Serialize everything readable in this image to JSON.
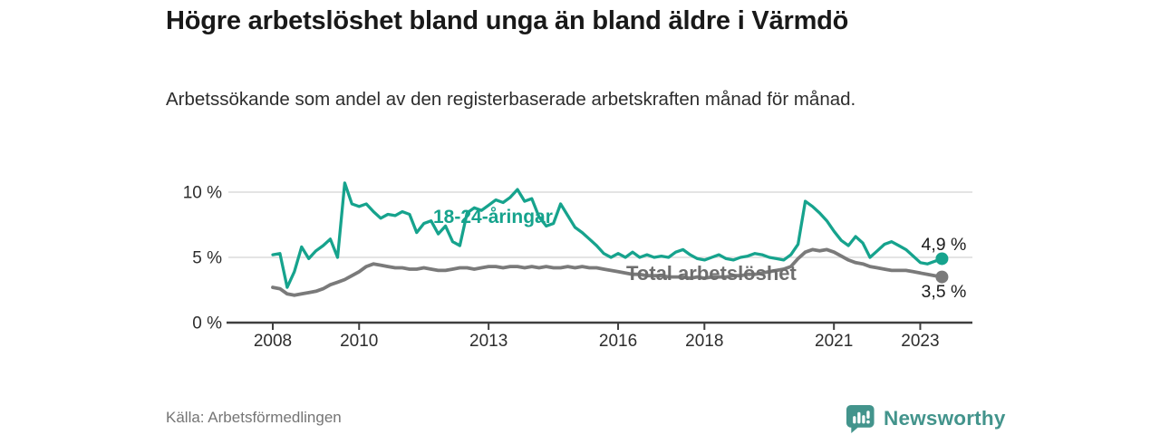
{
  "chart_data": {
    "type": "line",
    "title": "Högre arbetslöshet bland unga än bland äldre i Värmdö",
    "subtitle": "Arbetssökande som andel av den registerbaserade arbetskraften månad för månad.",
    "source": "Källa: Arbetsförmedlingen",
    "legend": "inline-labels-on-lines",
    "grid": "horizontal-only",
    "x_range_years": [
      2008,
      2023.5
    ],
    "x_axis": {
      "ticks": [
        {
          "year": 2008,
          "label": "2008"
        },
        {
          "year": 2010,
          "label": "2010"
        },
        {
          "year": 2013,
          "label": "2013"
        },
        {
          "year": 2016,
          "label": "2016"
        },
        {
          "year": 2018,
          "label": "2018"
        },
        {
          "year": 2021,
          "label": "2021"
        },
        {
          "year": 2023,
          "label": "2023"
        }
      ]
    },
    "y_axis": {
      "range": [
        0,
        11
      ],
      "unit": "%",
      "ticks": [
        {
          "value": 0,
          "label": "0 %"
        },
        {
          "value": 5,
          "label": "5 %"
        },
        {
          "value": 10,
          "label": "10 %"
        }
      ]
    },
    "series": [
      {
        "id": "total",
        "name": "Total arbetslöshet",
        "color": "#7a7a7a",
        "label_color": "#6e6e6e",
        "line_width": 3.8,
        "end_label": "3,5 %",
        "end_value": 3.5,
        "end_label_position": "below",
        "x_start_year": 2008,
        "x_step_years": 0.1667,
        "values": [
          2.7,
          2.6,
          2.2,
          2.1,
          2.2,
          2.3,
          2.4,
          2.6,
          2.9,
          3.1,
          3.3,
          3.6,
          3.9,
          4.3,
          4.5,
          4.4,
          4.3,
          4.2,
          4.2,
          4.1,
          4.1,
          4.2,
          4.1,
          4.0,
          4.0,
          4.1,
          4.2,
          4.2,
          4.1,
          4.2,
          4.3,
          4.3,
          4.2,
          4.3,
          4.3,
          4.2,
          4.3,
          4.2,
          4.3,
          4.2,
          4.2,
          4.3,
          4.2,
          4.3,
          4.2,
          4.2,
          4.1,
          4.0,
          3.9,
          3.8,
          3.7,
          3.7,
          3.6,
          3.6,
          3.6,
          3.5,
          3.5,
          3.5,
          3.4,
          3.5,
          3.4,
          3.5,
          3.5,
          3.5,
          3.6,
          3.6,
          3.7,
          3.7,
          3.8,
          3.9,
          4.0,
          4.1,
          4.3,
          4.9,
          5.4,
          5.6,
          5.5,
          5.6,
          5.4,
          5.1,
          4.8,
          4.6,
          4.5,
          4.3,
          4.2,
          4.1,
          4.0,
          4.0,
          4.0,
          3.9,
          3.8,
          3.7,
          3.6,
          3.5
        ]
      },
      {
        "id": "unga",
        "name": "18-24-åringar",
        "color": "#16a38d",
        "label_color": "#16a38d",
        "line_width": 3.3,
        "end_label": "4,9 %",
        "end_value": 4.9,
        "end_label_position": "above",
        "x_start_year": 2008,
        "x_step_years": 0.1667,
        "values": [
          5.2,
          5.3,
          2.7,
          3.9,
          5.8,
          4.9,
          5.5,
          5.9,
          6.4,
          5.0,
          10.7,
          9.1,
          8.9,
          9.1,
          8.5,
          8.0,
          8.3,
          8.2,
          8.5,
          8.3,
          6.9,
          7.6,
          7.8,
          6.8,
          7.4,
          6.2,
          5.9,
          8.4,
          8.8,
          8.6,
          9.0,
          9.4,
          9.2,
          9.6,
          10.2,
          9.3,
          9.5,
          8.1,
          7.4,
          7.6,
          9.1,
          8.2,
          7.3,
          6.9,
          6.4,
          5.9,
          5.3,
          5.0,
          5.3,
          5.0,
          5.4,
          5.0,
          5.2,
          5.0,
          5.1,
          5.0,
          5.4,
          5.6,
          5.2,
          4.9,
          4.8,
          5.0,
          5.2,
          4.9,
          4.8,
          5.0,
          5.1,
          5.3,
          5.2,
          5.0,
          4.9,
          4.8,
          5.2,
          6.0,
          9.3,
          8.9,
          8.4,
          7.8,
          7.0,
          6.3,
          5.9,
          6.6,
          6.1,
          5.0,
          5.5,
          6.0,
          6.2,
          5.9,
          5.6,
          5.1,
          4.6,
          4.5,
          4.7,
          4.9
        ]
      }
    ]
  },
  "branding": {
    "logo_text": "Newsworthy",
    "logo_color": "#43948c"
  }
}
